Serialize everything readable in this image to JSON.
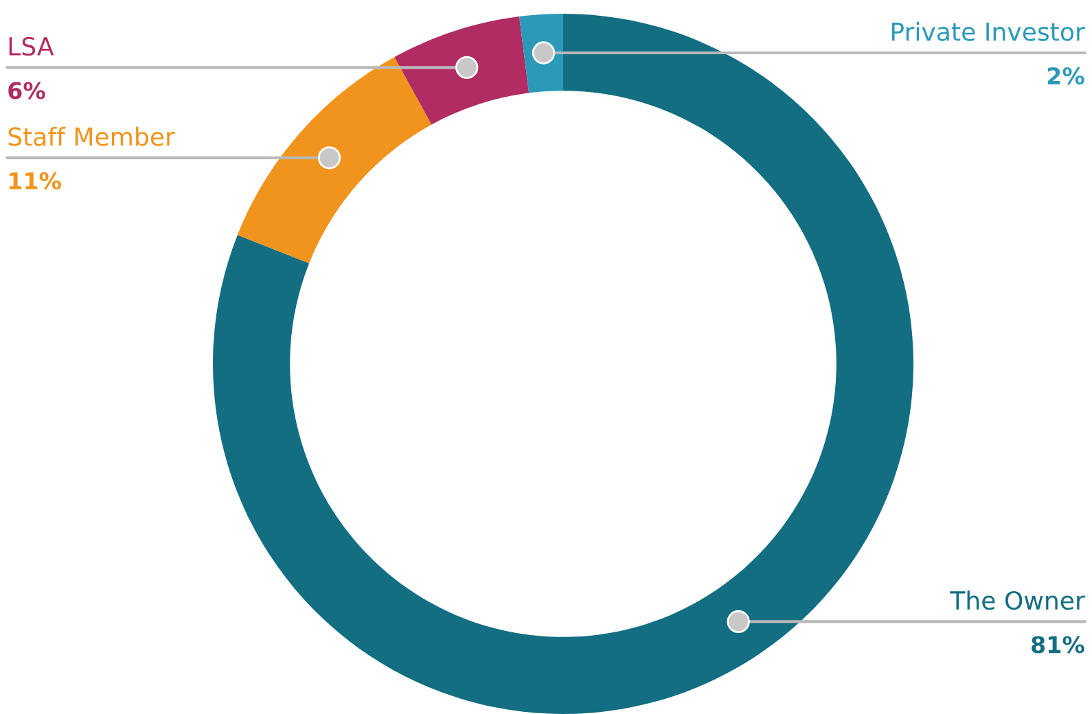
{
  "chart_data": {
    "type": "donut",
    "categories": [
      "The Owner",
      "Staff Member",
      "LSA",
      "Private Investor"
    ],
    "values": [
      81,
      11,
      6,
      2
    ],
    "value_labels": [
      "81%",
      "11%",
      "6%",
      "2%"
    ],
    "colors": [
      "#136e82",
      "#f0941e",
      "#b02c62",
      "#2b9ab8"
    ],
    "legend": false
  }
}
